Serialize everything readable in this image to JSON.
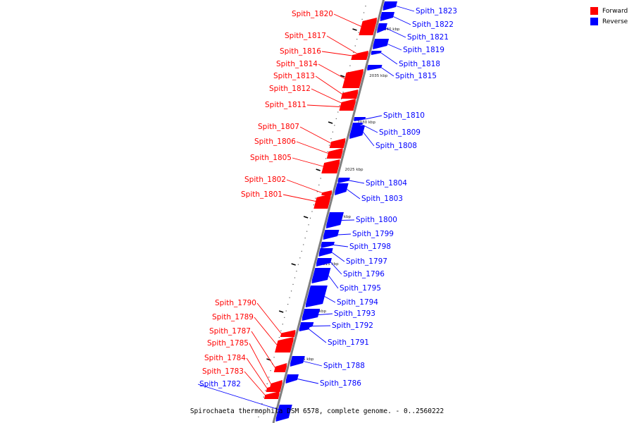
{
  "caption": "Spirochaeta thermophila DSM 6578, complete genome. - 0..2560222",
  "legend": [
    {
      "label": "Forward",
      "color": "#ff0000"
    },
    {
      "label": "Reverse",
      "color": "#0000ff"
    }
  ],
  "colors": {
    "forward": "#ff0000",
    "reverse": "#0000ff",
    "axis": "#808080"
  },
  "ticks": [
    {
      "label": "2040 kbp"
    },
    {
      "label": "2035 kbp"
    },
    {
      "label": "2030 kbp"
    },
    {
      "label": "2025 kbp"
    },
    {
      "label": "2020 kbp"
    },
    {
      "label": "2015 kbp"
    },
    {
      "label": "2010 kbp"
    },
    {
      "label": "2005 kbp"
    }
  ],
  "genes": [
    {
      "name": "Spith_1823",
      "strand": "reverse"
    },
    {
      "name": "Spith_1822",
      "strand": "reverse"
    },
    {
      "name": "Spith_1821",
      "strand": "reverse"
    },
    {
      "name": "Spith_1820",
      "strand": "forward"
    },
    {
      "name": "Spith_1819",
      "strand": "reverse"
    },
    {
      "name": "Spith_1818",
      "strand": "reverse"
    },
    {
      "name": "Spith_1817",
      "strand": "forward"
    },
    {
      "name": "Spith_1816",
      "strand": "forward"
    },
    {
      "name": "Spith_1815",
      "strand": "reverse"
    },
    {
      "name": "Spith_1814",
      "strand": "forward"
    },
    {
      "name": "Spith_1813",
      "strand": "forward"
    },
    {
      "name": "Spith_1812",
      "strand": "forward"
    },
    {
      "name": "Spith_1811",
      "strand": "forward"
    },
    {
      "name": "Spith_1810",
      "strand": "reverse"
    },
    {
      "name": "Spith_1809",
      "strand": "reverse"
    },
    {
      "name": "Spith_1808",
      "strand": "reverse"
    },
    {
      "name": "Spith_1807",
      "strand": "forward"
    },
    {
      "name": "Spith_1806",
      "strand": "forward"
    },
    {
      "name": "Spith_1805",
      "strand": "forward"
    },
    {
      "name": "Spith_1804",
      "strand": "reverse"
    },
    {
      "name": "Spith_1803",
      "strand": "reverse"
    },
    {
      "name": "Spith_1802",
      "strand": "forward"
    },
    {
      "name": "Spith_1801",
      "strand": "forward"
    },
    {
      "name": "Spith_1800",
      "strand": "reverse"
    },
    {
      "name": "Spith_1799",
      "strand": "reverse"
    },
    {
      "name": "Spith_1798",
      "strand": "reverse"
    },
    {
      "name": "Spith_1797",
      "strand": "reverse"
    },
    {
      "name": "Spith_1796",
      "strand": "reverse"
    },
    {
      "name": "Spith_1795",
      "strand": "reverse"
    },
    {
      "name": "Spith_1794",
      "strand": "reverse"
    },
    {
      "name": "Spith_1793",
      "strand": "reverse"
    },
    {
      "name": "Spith_1792",
      "strand": "reverse"
    },
    {
      "name": "Spith_1791",
      "strand": "reverse"
    },
    {
      "name": "Spith_1790",
      "strand": "forward"
    },
    {
      "name": "Spith_1789",
      "strand": "forward"
    },
    {
      "name": "Spith_1788",
      "strand": "reverse"
    },
    {
      "name": "Spith_1787",
      "strand": "forward"
    },
    {
      "name": "Spith_1786",
      "strand": "reverse"
    },
    {
      "name": "Spith_1785",
      "strand": "forward"
    },
    {
      "name": "Spith_1784",
      "strand": "forward"
    },
    {
      "name": "Spith_1783",
      "strand": "forward"
    },
    {
      "name": "Spith_1782",
      "strand": "reverse"
    }
  ]
}
